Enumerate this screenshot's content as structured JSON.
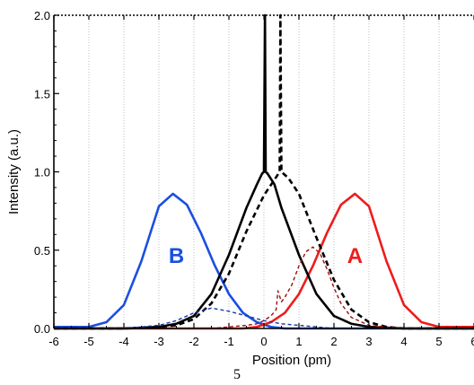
{
  "page": {
    "number": "5"
  },
  "chart_data": {
    "type": "line",
    "xlabel": "Position (pm)",
    "ylabel": "Intensity (a.u.)",
    "xlim": [
      -6,
      6
    ],
    "ylim": [
      0,
      2
    ],
    "xticks": [
      -6,
      -5,
      -4,
      -3,
      -2,
      -1,
      0,
      1,
      2,
      3,
      4,
      5,
      6
    ],
    "yticks": [
      0,
      0.5,
      1,
      1.5,
      2
    ],
    "ytick_labels": [
      "0.0",
      "0.5",
      "1.0",
      "1.5",
      "2.0"
    ],
    "grid": "vertical-dotted",
    "annotations": [
      {
        "text": "B",
        "x": -2.5,
        "y": 0.47,
        "color": "#1a4fe0"
      },
      {
        "text": "A",
        "x": 2.6,
        "y": 0.47,
        "color": "#ee1c1c"
      }
    ],
    "series": [
      {
        "color": "#1a4fe0",
        "dash": "solid",
        "x": [
          -6.0,
          -5.5,
          -5.0,
          -4.5,
          -4.0,
          -3.5,
          -3.0,
          -2.6,
          -2.2,
          -1.8,
          -1.4,
          -1.0,
          -0.6,
          -0.2,
          0.2,
          0.6,
          1.0,
          1.5,
          2.0,
          3.0,
          4.0,
          5.0,
          6.0
        ],
        "y": [
          0.01,
          0.01,
          0.01,
          0.04,
          0.15,
          0.43,
          0.78,
          0.86,
          0.79,
          0.61,
          0.4,
          0.22,
          0.1,
          0.04,
          0.01,
          0.0,
          0.0,
          0.0,
          0.0,
          0.0,
          0.0,
          0.0,
          0.0
        ]
      },
      {
        "color": "#ee1c1c",
        "dash": "solid",
        "x": [
          -6.0,
          -5.0,
          -4.0,
          -3.0,
          -2.0,
          -1.5,
          -1.0,
          -0.6,
          -0.2,
          0.2,
          0.6,
          1.0,
          1.4,
          1.8,
          2.2,
          2.6,
          3.0,
          3.5,
          4.0,
          4.5,
          5.0,
          5.5,
          6.0
        ],
        "y": [
          0.0,
          0.0,
          0.0,
          0.0,
          0.0,
          0.0,
          0.0,
          0.0,
          0.01,
          0.04,
          0.1,
          0.22,
          0.4,
          0.61,
          0.79,
          0.86,
          0.78,
          0.43,
          0.15,
          0.04,
          0.01,
          0.01,
          0.01
        ]
      },
      {
        "color": "#000000",
        "dash": "solid",
        "x": [
          -6.0,
          -5.0,
          -4.0,
          -3.0,
          -2.5,
          -2.0,
          -1.5,
          -1.0,
          -0.5,
          -0.2,
          -0.05,
          0.0,
          0.03,
          0.05,
          0.1,
          0.3,
          0.5,
          1.0,
          1.5,
          2.0,
          2.5,
          3.0,
          4.0,
          5.0,
          6.0
        ],
        "y": [
          0.0,
          0.0,
          0.0,
          0.01,
          0.03,
          0.08,
          0.22,
          0.47,
          0.77,
          0.92,
          0.99,
          1.0,
          2.0,
          1.0,
          0.99,
          0.92,
          0.77,
          0.47,
          0.22,
          0.08,
          0.03,
          0.01,
          0.0,
          0.0,
          0.0
        ]
      },
      {
        "color": "#000000",
        "dash": "dashed",
        "x": [
          -6.0,
          -5.0,
          -4.0,
          -3.0,
          -2.5,
          -2.0,
          -1.5,
          -1.0,
          -0.5,
          0.0,
          0.3,
          0.45,
          0.47,
          0.5,
          0.55,
          0.7,
          1.0,
          1.5,
          2.0,
          2.5,
          3.0,
          3.5,
          4.0,
          6.0
        ],
        "y": [
          0.0,
          0.0,
          0.0,
          0.01,
          0.02,
          0.06,
          0.16,
          0.35,
          0.62,
          0.85,
          0.95,
          1.0,
          2.0,
          1.0,
          0.99,
          0.96,
          0.86,
          0.58,
          0.31,
          0.12,
          0.04,
          0.01,
          0.0,
          0.0
        ]
      },
      {
        "color": "#1a3aa8",
        "dash": "dashed",
        "x": [
          -6.0,
          -5.0,
          -4.0,
          -3.5,
          -3.0,
          -2.5,
          -2.0,
          -1.5,
          -1.0,
          -0.5,
          0.0,
          0.5,
          1.0,
          1.5,
          2.0,
          3.0,
          4.0,
          6.0
        ],
        "y": [
          0.0,
          0.0,
          0.0,
          0.01,
          0.02,
          0.05,
          0.1,
          0.13,
          0.11,
          0.08,
          0.05,
          0.03,
          0.02,
          0.01,
          0.0,
          0.0,
          0.0,
          0.0
        ]
      },
      {
        "color": "#9b1010",
        "dash": "dashed",
        "x": [
          -6.0,
          -3.0,
          -2.0,
          -1.5,
          -1.0,
          -0.5,
          -0.2,
          0.0,
          0.2,
          0.35,
          0.4,
          0.5,
          0.6,
          0.8,
          1.0,
          1.2,
          1.4,
          1.6,
          1.8,
          2.0,
          2.2,
          2.5,
          3.0,
          3.5,
          4.0,
          6.0
        ],
        "y": [
          0.0,
          0.0,
          0.0,
          0.0,
          0.01,
          0.02,
          0.03,
          0.05,
          0.08,
          0.12,
          0.24,
          0.17,
          0.2,
          0.28,
          0.4,
          0.49,
          0.52,
          0.48,
          0.38,
          0.26,
          0.16,
          0.07,
          0.02,
          0.01,
          0.0,
          0.0
        ]
      }
    ]
  }
}
